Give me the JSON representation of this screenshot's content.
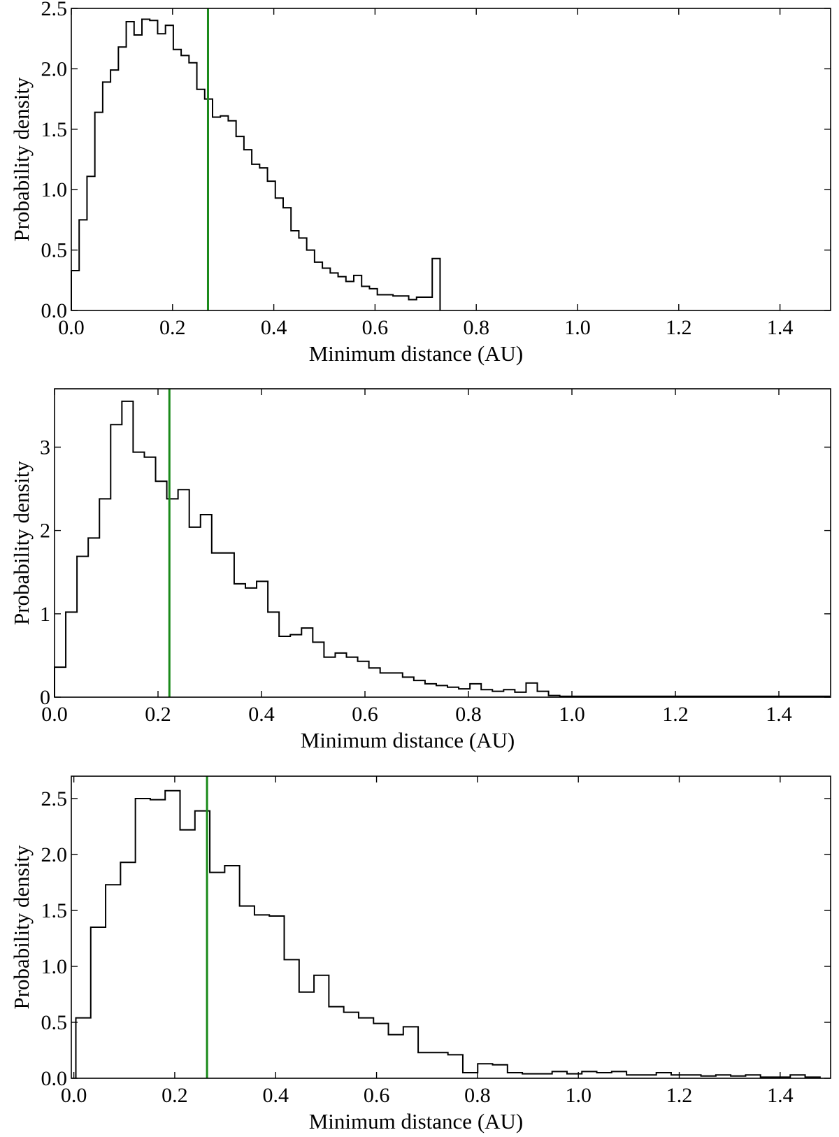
{
  "chart_data": [
    {
      "type": "histogram",
      "xlabel": "Minimum distance (AU)",
      "ylabel": "Probability density",
      "xlim": [
        0.0,
        1.5
      ],
      "ylim": [
        0.0,
        2.5
      ],
      "xticks": [
        0.0,
        0.2,
        0.4,
        0.6,
        0.8,
        1.0,
        1.2,
        1.4
      ],
      "xtick_labels": [
        "0.0",
        "0.2",
        "0.4",
        "0.6",
        "0.8",
        "1.0",
        "1.2",
        "1.4"
      ],
      "yticks": [
        0.0,
        0.5,
        1.0,
        1.5,
        2.0,
        2.5
      ],
      "ytick_labels": [
        "0.0",
        "0.5",
        "1.0",
        "1.5",
        "2.0",
        "2.5"
      ],
      "bin_width": 0.0155,
      "x_start": 0.0,
      "values": [
        0.33,
        0.75,
        1.11,
        1.64,
        1.89,
        1.99,
        2.18,
        2.39,
        2.28,
        2.41,
        2.4,
        2.29,
        2.36,
        2.16,
        2.11,
        2.05,
        1.83,
        1.75,
        1.6,
        1.61,
        1.57,
        1.44,
        1.33,
        1.21,
        1.18,
        1.07,
        0.93,
        0.85,
        0.66,
        0.6,
        0.5,
        0.4,
        0.35,
        0.31,
        0.28,
        0.24,
        0.29,
        0.2,
        0.18,
        0.13,
        0.13,
        0.12,
        0.12,
        0.09,
        0.11,
        0.11,
        0.43
      ],
      "marker_line": {
        "x": 0.27,
        "color": "#1a8a1a"
      }
    },
    {
      "type": "histogram",
      "xlabel": "Minimum distance (AU)",
      "ylabel": "Probability density",
      "xlim": [
        0.0,
        1.5
      ],
      "ylim": [
        0.0,
        3.7
      ],
      "xticks": [
        0.0,
        0.2,
        0.4,
        0.6,
        0.8,
        1.0,
        1.2,
        1.4
      ],
      "xtick_labels": [
        "0.0",
        "0.2",
        "0.4",
        "0.6",
        "0.8",
        "1.0",
        "1.2",
        "1.4"
      ],
      "yticks": [
        0,
        1,
        2,
        3
      ],
      "ytick_labels": [
        "0",
        "1",
        "2",
        "3"
      ],
      "bin_width": 0.0217,
      "x_start": 0.0,
      "values": [
        0.36,
        1.02,
        1.69,
        1.91,
        2.38,
        3.27,
        3.55,
        2.94,
        2.88,
        2.59,
        2.38,
        2.49,
        2.04,
        2.19,
        1.73,
        1.73,
        1.36,
        1.31,
        1.39,
        1.02,
        0.73,
        0.75,
        0.83,
        0.66,
        0.48,
        0.53,
        0.48,
        0.43,
        0.35,
        0.29,
        0.29,
        0.24,
        0.2,
        0.16,
        0.14,
        0.12,
        0.1,
        0.16,
        0.09,
        0.07,
        0.09,
        0.06,
        0.17,
        0.07,
        0.02,
        0.01,
        0.01,
        0.01,
        0.01,
        0.01,
        0.01,
        0.01,
        0.01,
        0.01,
        0.01,
        0.01,
        0.01,
        0.01,
        0.01,
        0.01,
        0.01,
        0.01,
        0.01,
        0.01,
        0.01,
        0.01,
        0.01,
        0.01,
        0.01
      ],
      "marker_line": {
        "x": 0.222,
        "color": "#1a8a1a"
      }
    },
    {
      "type": "histogram",
      "xlabel": "Minimum distance (AU)",
      "ylabel": "Probability density",
      "xlim": [
        -0.005,
        1.5
      ],
      "ylim": [
        0.0,
        2.7
      ],
      "xticks": [
        0.0,
        0.2,
        0.4,
        0.6,
        0.8,
        1.0,
        1.2,
        1.4
      ],
      "xtick_labels": [
        "0.0",
        "0.2",
        "0.4",
        "0.6",
        "0.8",
        "1.0",
        "1.2",
        "1.4"
      ],
      "yticks": [
        0.0,
        0.5,
        1.0,
        1.5,
        2.0,
        2.5
      ],
      "ytick_labels": [
        "0.0",
        "0.5",
        "1.0",
        "1.5",
        "2.0",
        "2.5"
      ],
      "bin_width": 0.0295,
      "x_start": 0.004,
      "values": [
        0.54,
        1.35,
        1.73,
        1.93,
        2.5,
        2.49,
        2.57,
        2.22,
        2.39,
        1.84,
        1.9,
        1.54,
        1.46,
        1.45,
        1.06,
        0.77,
        0.92,
        0.64,
        0.59,
        0.54,
        0.49,
        0.39,
        0.46,
        0.23,
        0.23,
        0.21,
        0.05,
        0.13,
        0.12,
        0.05,
        0.04,
        0.04,
        0.06,
        0.04,
        0.06,
        0.05,
        0.06,
        0.03,
        0.03,
        0.05,
        0.03,
        0.03,
        0.02,
        0.03,
        0.02,
        0.03,
        0.01,
        0.01,
        0.03,
        0.01
      ],
      "marker_line": {
        "x": 0.264,
        "color": "#1a8a1a"
      }
    }
  ]
}
